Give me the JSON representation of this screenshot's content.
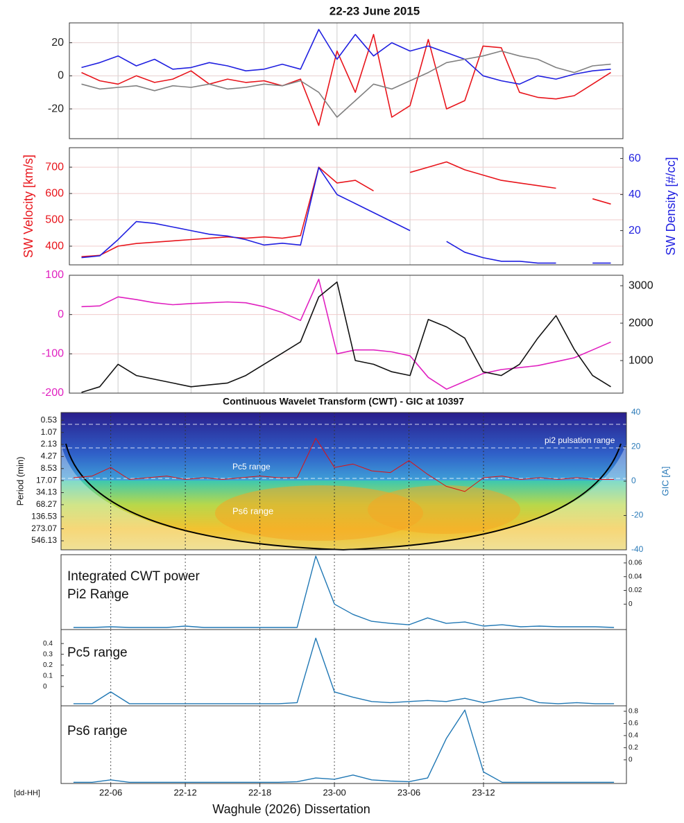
{
  "caption": "Waghule (2026) Dissertation",
  "chart_data": [
    {
      "type": "line",
      "title": "22-23 June 2015",
      "x": [
        3,
        4.5,
        6,
        7.5,
        9,
        10.5,
        12,
        13.5,
        15,
        16.5,
        18,
        19.5,
        21,
        22.5,
        24,
        25.5,
        27,
        28.5,
        30,
        31.5,
        33,
        34.5,
        36,
        37.5,
        39,
        40.5,
        42,
        43.5,
        45,
        46.5
      ],
      "xlim": [
        2,
        47.5
      ],
      "ylim": [
        -38,
        32
      ],
      "yticks": [
        -20,
        0,
        20
      ],
      "grid": true,
      "series": [
        {
          "color": "#e8141b",
          "values": [
            2,
            -3,
            -5,
            0,
            -4,
            -2,
            3,
            -5,
            -2,
            -4,
            -3,
            -6,
            -2,
            -30,
            15,
            -10,
            25,
            -25,
            -18,
            22,
            -20,
            -15,
            18,
            17,
            -10,
            -13,
            -14,
            -12,
            -5,
            2
          ]
        },
        {
          "color": "#1f1fe0",
          "values": [
            5,
            8,
            12,
            6,
            10,
            4,
            5,
            8,
            6,
            3,
            4,
            7,
            4,
            28,
            10,
            25,
            12,
            20,
            15,
            18,
            14,
            10,
            0,
            -3,
            -5,
            0,
            -2,
            1,
            3,
            4
          ]
        },
        {
          "color": "#808080",
          "values": [
            -5,
            -8,
            -7,
            -6,
            -9,
            -6,
            -7,
            -5,
            -8,
            -7,
            -5,
            -6,
            -3,
            -10,
            -25,
            -15,
            -5,
            -8,
            -3,
            2,
            8,
            10,
            12,
            15,
            12,
            10,
            5,
            2,
            6,
            7
          ]
        }
      ]
    },
    {
      "type": "line",
      "ylabel": "SW Velocity [km/s]",
      "y2label": "SW Density [#/cc]",
      "x": [
        3,
        4.5,
        6,
        7.5,
        9,
        10.5,
        12,
        13.5,
        15,
        16.5,
        18,
        19.5,
        21,
        22.5,
        24,
        25.5,
        27,
        28.5,
        30,
        31.5,
        33,
        34.5,
        36,
        37.5,
        39,
        40.5,
        42,
        43.5,
        45,
        46.5
      ],
      "xlim": [
        2,
        47.5
      ],
      "ylim": [
        329,
        774
      ],
      "yticks": [
        400,
        500,
        600,
        700
      ],
      "y2lim": [
        1,
        66
      ],
      "y2ticks": [
        20,
        40,
        60
      ],
      "grid": true,
      "series": [
        {
          "color": "#e8141b",
          "values": [
            360,
            365,
            400,
            410,
            415,
            420,
            425,
            430,
            435,
            430,
            435,
            430,
            440,
            700,
            640,
            650,
            610,
            null,
            680,
            700,
            720,
            690,
            670,
            650,
            640,
            630,
            620,
            null,
            580,
            560
          ]
        },
        {
          "color": "#1f1fe0",
          "axis": "y2",
          "values": [
            5,
            6,
            15,
            25,
            24,
            22,
            20,
            18,
            17,
            15,
            12,
            13,
            12,
            55,
            40,
            35,
            30,
            25,
            20,
            null,
            14,
            8,
            5,
            3,
            3,
            2,
            2,
            null,
            2,
            2
          ]
        }
      ]
    },
    {
      "type": "line",
      "x": [
        3,
        4.5,
        6,
        7.5,
        9,
        10.5,
        12,
        13.5,
        15,
        16.5,
        18,
        19.5,
        21,
        22.5,
        24,
        25.5,
        27,
        28.5,
        30,
        31.5,
        33,
        34.5,
        36,
        37.5,
        39,
        40.5,
        42,
        43.5,
        45,
        46.5
      ],
      "xlim": [
        2,
        47.5
      ],
      "ylim": [
        -200,
        100
      ],
      "yticks": [
        -200,
        -100,
        0,
        100
      ],
      "y2lim": [
        130,
        3280
      ],
      "y2ticks": [
        1000,
        2000,
        3000
      ],
      "grid": true,
      "series": [
        {
          "color": "#e020c0",
          "values": [
            20,
            22,
            45,
            38,
            30,
            25,
            28,
            30,
            32,
            30,
            20,
            5,
            -15,
            90,
            -100,
            -90,
            -90,
            -95,
            -105,
            -160,
            -190,
            -170,
            -150,
            -140,
            -135,
            -130,
            -120,
            -110,
            -90,
            -70
          ]
        },
        {
          "color": "#111111",
          "axis": "y2",
          "values": [
            150,
            300,
            900,
            600,
            500,
            400,
            300,
            350,
            400,
            600,
            900,
            1200,
            1500,
            2700,
            3100,
            1000,
            900,
            700,
            600,
            2100,
            1900,
            1600,
            700,
            600,
            900,
            1600,
            2200,
            1300,
            600,
            300
          ]
        }
      ]
    },
    {
      "type": "line",
      "title": "Continuous Wavelet Transform (CWT) - GIC at 10397",
      "ylabel": "Period (min)",
      "y2label": "GIC [A]",
      "x": [
        3,
        4.5,
        6,
        7.5,
        9,
        10.5,
        12,
        13.5,
        15,
        16.5,
        18,
        19.5,
        21,
        22.5,
        24,
        25.5,
        27,
        28.5,
        30,
        31.5,
        33,
        34.5,
        36,
        37.5,
        39,
        40.5,
        42,
        43.5,
        45,
        46.5
      ],
      "xlim": [
        2,
        47.5
      ],
      "log_y": true,
      "y_reversed": true,
      "ylim": [
        0.34,
        917
      ],
      "yticks": [
        0.53,
        1.07,
        2.13,
        4.27,
        8.53,
        17.07,
        34.13,
        68.27,
        136.53,
        273.07,
        546.13
      ],
      "y2lim": [
        -40,
        40
      ],
      "y2ticks": [
        -40,
        -20,
        0,
        20,
        40
      ],
      "annotations": [
        "pi2 pulsation range",
        "Pc5 range",
        "Ps6 range"
      ],
      "series": [
        {
          "color": "#e01010",
          "axis": "y2",
          "values": [
            2,
            3,
            8,
            1,
            2,
            3,
            1,
            2,
            1,
            2,
            3,
            2,
            2,
            25,
            8,
            10,
            6,
            5,
            12,
            4,
            -3,
            -6,
            2,
            3,
            1,
            2,
            1,
            2,
            1,
            1
          ]
        }
      ]
    },
    {
      "type": "line",
      "annotations": [
        "Integrated CWT power",
        "Pi2 Range"
      ],
      "x": [
        3,
        4.5,
        6,
        7.5,
        9,
        10.5,
        12,
        13.5,
        15,
        16.5,
        18,
        19.5,
        21,
        22.5,
        24,
        25.5,
        27,
        28.5,
        30,
        31.5,
        33,
        34.5,
        36,
        37.5,
        39,
        40.5,
        42,
        43.5,
        45,
        46.5
      ],
      "xlim": [
        2,
        47.5
      ],
      "ylim": [
        -0.037,
        0.072
      ],
      "yticks": [
        0,
        0.02,
        0.04,
        0.06
      ],
      "series": [
        {
          "color": "#1f77b4",
          "values": [
            -0.034,
            -0.034,
            -0.033,
            -0.034,
            -0.034,
            -0.034,
            -0.032,
            -0.034,
            -0.034,
            -0.034,
            -0.034,
            -0.034,
            -0.034,
            0.07,
            0.0,
            -0.015,
            -0.025,
            -0.028,
            -0.03,
            -0.02,
            -0.028,
            -0.026,
            -0.032,
            -0.03,
            -0.033,
            -0.032,
            -0.033,
            -0.033,
            -0.033,
            -0.034
          ]
        }
      ]
    },
    {
      "type": "line",
      "annotations": [
        "Pc5 range"
      ],
      "x": [
        3,
        4.5,
        6,
        7.5,
        9,
        10.5,
        12,
        13.5,
        15,
        16.5,
        18,
        19.5,
        21,
        22.5,
        24,
        25.5,
        27,
        28.5,
        30,
        31.5,
        33,
        34.5,
        36,
        37.5,
        39,
        40.5,
        42,
        43.5,
        45,
        46.5
      ],
      "xlim": [
        2,
        47.5
      ],
      "ylim": [
        -0.18,
        0.53
      ],
      "yticks": [
        0,
        0.1,
        0.2,
        0.3,
        0.4
      ],
      "series": [
        {
          "color": "#1f77b4",
          "values": [
            -0.16,
            -0.16,
            -0.05,
            -0.16,
            -0.16,
            -0.16,
            -0.16,
            -0.16,
            -0.16,
            -0.16,
            -0.16,
            -0.16,
            -0.15,
            0.45,
            -0.05,
            -0.1,
            -0.14,
            -0.15,
            -0.14,
            -0.13,
            -0.14,
            -0.11,
            -0.15,
            -0.12,
            -0.1,
            -0.15,
            -0.16,
            -0.15,
            -0.16,
            -0.16
          ]
        }
      ]
    },
    {
      "type": "line",
      "annotations": [
        "Ps6 range"
      ],
      "xlabel": "[dd-HH]",
      "x": [
        3,
        4.5,
        6,
        7.5,
        9,
        10.5,
        12,
        13.5,
        15,
        16.5,
        18,
        19.5,
        21,
        22.5,
        24,
        25.5,
        27,
        28.5,
        30,
        31.5,
        33,
        34.5,
        36,
        37.5,
        39,
        40.5,
        42,
        43.5,
        45,
        46.5
      ],
      "xlim": [
        2,
        47.5
      ],
      "ylim": [
        -0.39,
        0.89
      ],
      "yticks": [
        0,
        0.2,
        0.4,
        0.6,
        0.8
      ],
      "xticks": [
        {
          "value": 6,
          "label": "22-06"
        },
        {
          "value": 12,
          "label": "22-12"
        },
        {
          "value": 18,
          "label": "22-18"
        },
        {
          "value": 24,
          "label": "23-00"
        },
        {
          "value": 30,
          "label": "23-06"
        },
        {
          "value": 36,
          "label": "23-12"
        }
      ],
      "series": [
        {
          "color": "#1f77b4",
          "values": [
            -0.37,
            -0.37,
            -0.33,
            -0.37,
            -0.37,
            -0.37,
            -0.37,
            -0.37,
            -0.37,
            -0.37,
            -0.37,
            -0.37,
            -0.36,
            -0.3,
            -0.32,
            -0.25,
            -0.33,
            -0.35,
            -0.36,
            -0.3,
            0.35,
            0.82,
            -0.2,
            -0.37,
            -0.37,
            -0.37,
            -0.37,
            -0.37,
            -0.37,
            -0.37
          ]
        }
      ]
    }
  ]
}
